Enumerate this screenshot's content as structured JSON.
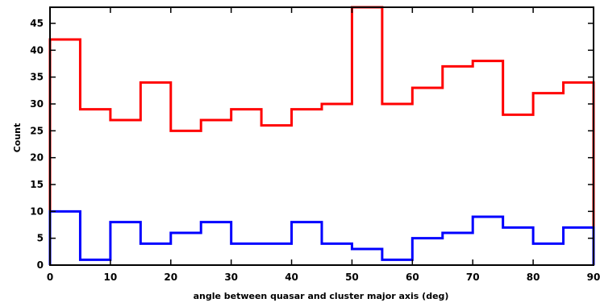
{
  "chart_data": {
    "type": "histogram",
    "xlabel": "angle between quasar and cluster major axis (deg)",
    "ylabel": "Count",
    "xlim": [
      0,
      90
    ],
    "ylim": [
      0,
      48
    ],
    "xticks": [
      0,
      10,
      20,
      30,
      40,
      50,
      60,
      70,
      80,
      90
    ],
    "yticks": [
      0,
      5,
      10,
      15,
      20,
      25,
      30,
      35,
      40,
      45
    ],
    "bin_edges": [
      0,
      5,
      10,
      15,
      20,
      25,
      30,
      35,
      40,
      45,
      50,
      55,
      60,
      65,
      70,
      75,
      80,
      85,
      90
    ],
    "series": [
      {
        "color": "#ff0000",
        "values": [
          42,
          29,
          27,
          34,
          25,
          27,
          29,
          26,
          29,
          30,
          48,
          30,
          33,
          37,
          38,
          28,
          32,
          34
        ]
      },
      {
        "color": "#0000ff",
        "values": [
          10,
          1,
          8,
          4,
          6,
          8,
          4,
          4,
          8,
          4,
          3,
          1,
          5,
          6,
          9,
          7,
          4,
          7
        ]
      }
    ],
    "grid": false,
    "legend": "none"
  }
}
